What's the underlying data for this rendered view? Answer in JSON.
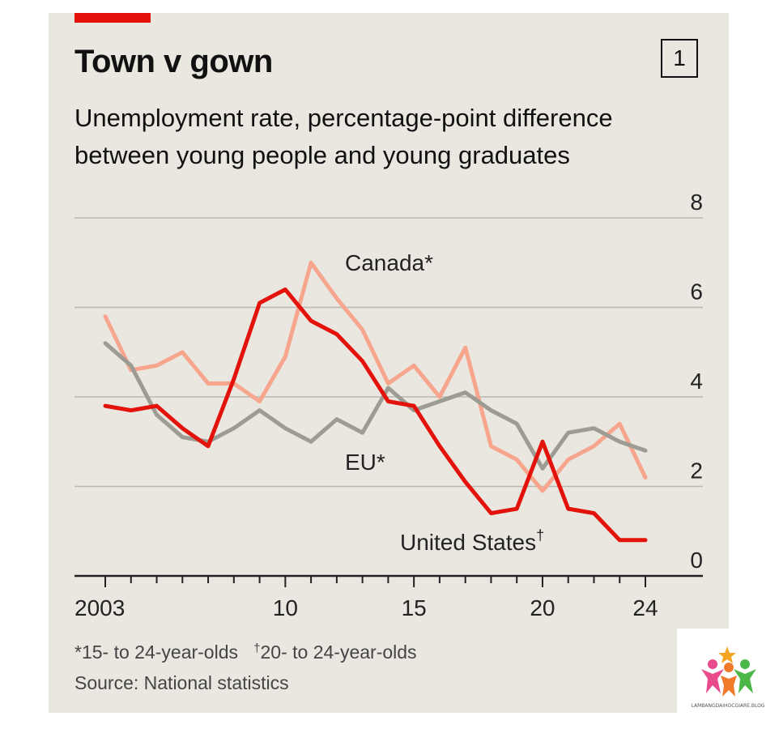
{
  "header": {
    "title": "Town v gown",
    "badge": "1",
    "subtitle_line1": "Unemployment rate, percentage-point difference",
    "subtitle_line2": "between young people and young graduates"
  },
  "footnotes": {
    "star_note": "*15- to 24-year-olds",
    "dagger_symbol": "†",
    "dagger_note": "20- to 24-year-olds",
    "source": "Source: National statistics"
  },
  "watermark": {
    "text": "LAMBANGDAIHOCGIARE.BLOG"
  },
  "chart_data": {
    "type": "line",
    "x": [
      2003,
      2004,
      2005,
      2006,
      2007,
      2008,
      2009,
      2010,
      2011,
      2012,
      2013,
      2014,
      2015,
      2016,
      2017,
      2018,
      2019,
      2020,
      2021,
      2022,
      2023,
      2024
    ],
    "x_tick_labels": [
      {
        "x": 2003,
        "label": "2003"
      },
      {
        "x": 2010,
        "label": "10"
      },
      {
        "x": 2015,
        "label": "15"
      },
      {
        "x": 2020,
        "label": "20"
      },
      {
        "x": 2024,
        "label": "24"
      }
    ],
    "ylim": [
      0,
      8
    ],
    "yticks": [
      0,
      2,
      4,
      6,
      8
    ],
    "y_axis_side": "right",
    "grid": true,
    "series": [
      {
        "name": "Canada*",
        "color": "#f7a58c",
        "values": [
          5.8,
          4.6,
          4.7,
          5.0,
          4.3,
          4.3,
          3.9,
          4.9,
          7.0,
          6.2,
          5.5,
          4.3,
          4.7,
          4.0,
          5.1,
          2.9,
          2.6,
          1.9,
          2.6,
          2.9,
          3.4,
          2.2
        ]
      },
      {
        "name": "EU*",
        "color": "#9c9c94",
        "values": [
          5.2,
          4.7,
          3.6,
          3.1,
          3.0,
          3.3,
          3.7,
          3.3,
          3.0,
          3.5,
          3.2,
          4.2,
          3.7,
          3.9,
          4.1,
          3.7,
          3.4,
          2.4,
          3.2,
          3.3,
          3.0,
          2.8
        ]
      },
      {
        "name": "United States",
        "name_suffix": "†",
        "color": "#e3120b",
        "values": [
          3.8,
          3.7,
          3.8,
          3.3,
          2.9,
          4.4,
          6.1,
          6.4,
          5.7,
          5.4,
          4.8,
          3.9,
          3.8,
          2.9,
          2.1,
          1.4,
          1.5,
          3.0,
          1.5,
          1.4,
          0.8,
          0.8
        ]
      }
    ]
  }
}
